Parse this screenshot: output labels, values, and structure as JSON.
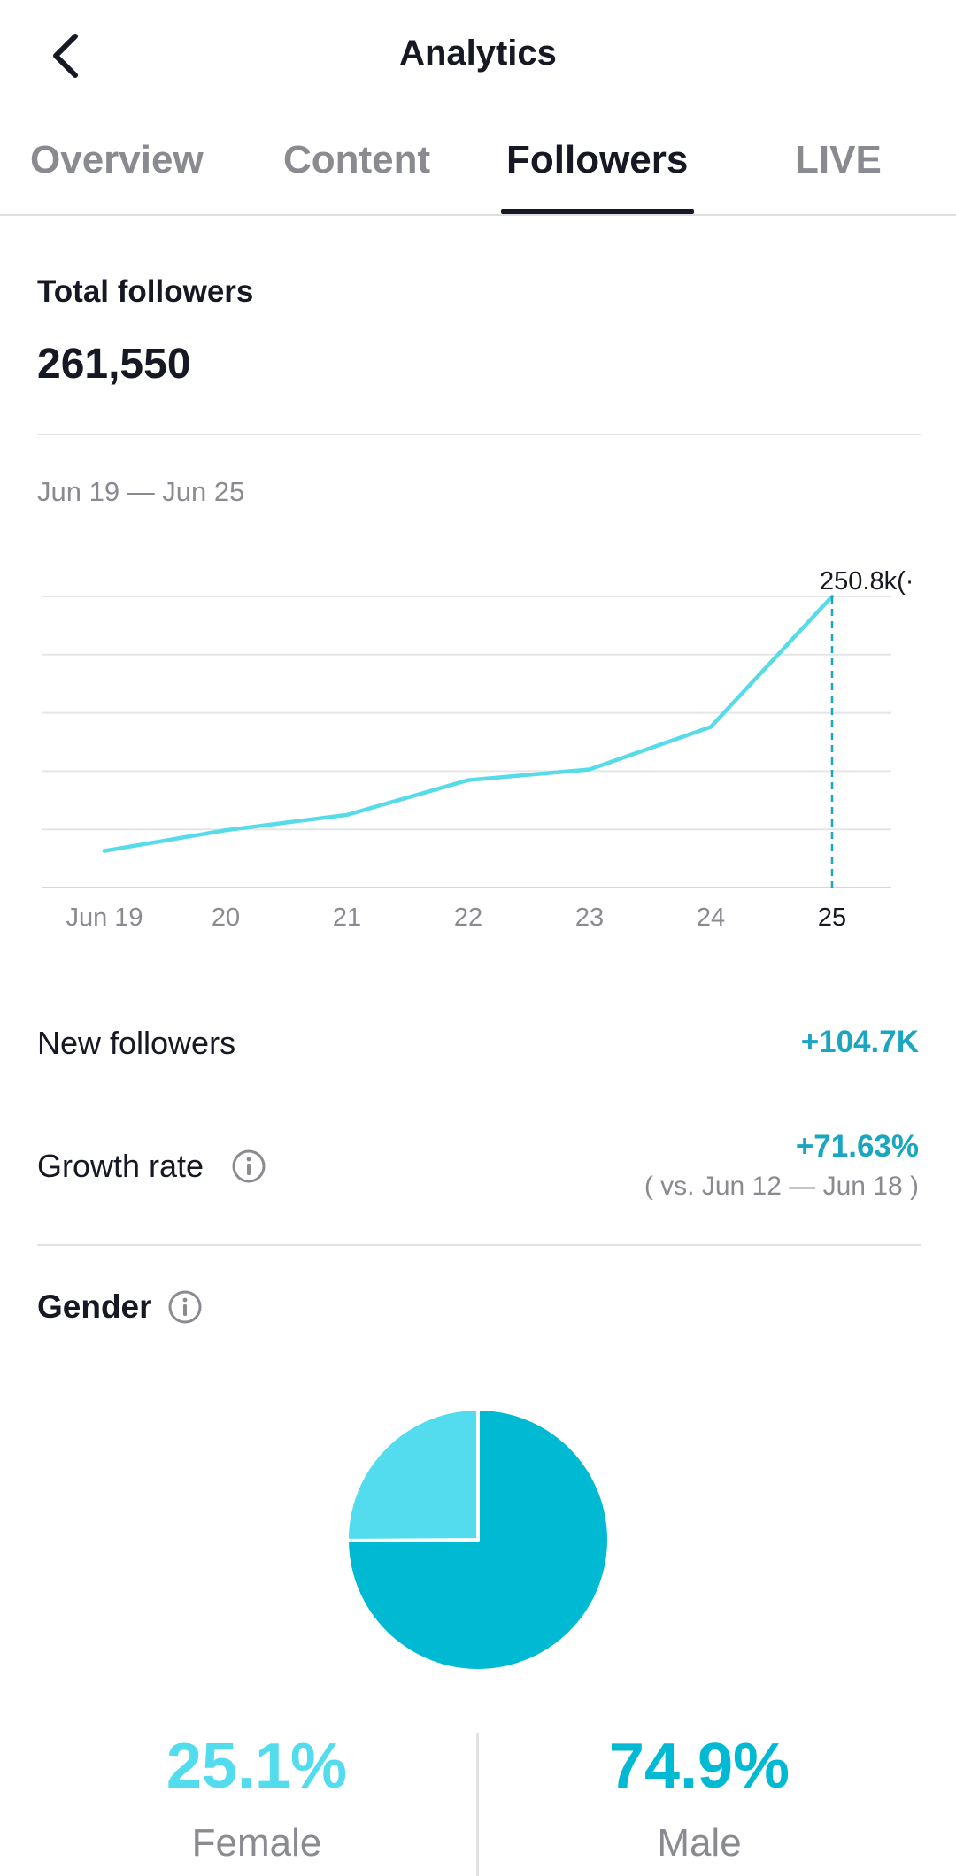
{
  "header": {
    "title": "Analytics",
    "back_icon": "chevron-left-icon"
  },
  "tabs": [
    {
      "label": "Overview",
      "active": false
    },
    {
      "label": "Content",
      "active": false
    },
    {
      "label": "Followers",
      "active": true
    },
    {
      "label": "LIVE",
      "active": false
    }
  ],
  "total": {
    "label": "Total followers",
    "value": "261,550"
  },
  "date_range": "Jun 19 — Jun 25",
  "chart_data": {
    "type": "line",
    "categories": [
      "Jun 19",
      "20",
      "21",
      "22",
      "23",
      "24",
      "25"
    ],
    "values": [
      146.1,
      154.6,
      160.9,
      175.2,
      179.6,
      197.1,
      250.8
    ],
    "series_color": "#57dbe8",
    "highlight_index": 6,
    "highlight_label": "250.8k(·",
    "grid": true
  },
  "stats": {
    "new_followers": {
      "label": "New followers",
      "value": "+104.7K"
    },
    "growth_rate": {
      "label": "Growth rate",
      "value": "+71.63%",
      "comparison": "( vs. Jun 12 — Jun 18 )",
      "info_icon": "info-icon"
    }
  },
  "gender": {
    "title": "Gender",
    "info_icon": "info-icon",
    "slices": [
      {
        "label": "Female",
        "percent_text": "25.1%",
        "value": 25.1,
        "color": "#52dcee"
      },
      {
        "label": "Male",
        "percent_text": "74.9%",
        "value": 74.9,
        "color": "#00b9d3"
      }
    ]
  },
  "colors": {
    "accent": "#1aa6c0",
    "text": "#161823",
    "muted": "#8a8b91"
  }
}
